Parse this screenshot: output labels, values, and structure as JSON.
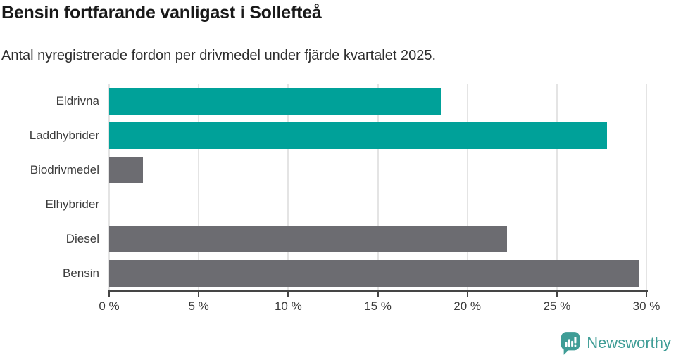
{
  "title": "Bensin fortfarande vanligast i Sollefteå",
  "subtitle": "Antal nyregistrerade fordon per drivmedel under fjärde kvartalet 2025.",
  "chart_data": {
    "type": "bar",
    "orientation": "horizontal",
    "categories": [
      "Eldrivna",
      "Laddhybrider",
      "Biodrivmedel",
      "Elhybrider",
      "Diesel",
      "Bensin"
    ],
    "values": [
      18.5,
      27.8,
      1.9,
      0,
      22.2,
      29.6
    ],
    "unit": "%",
    "xlim": [
      0,
      30
    ],
    "x_tick_values": [
      0,
      5,
      10,
      15,
      20,
      25,
      30
    ],
    "x_tick_labels": [
      "0 %",
      "5 %",
      "10 %",
      "15 %",
      "20 %",
      "25 %",
      "30 %"
    ],
    "bar_colors": [
      "#00a199",
      "#00a199",
      "#6c6c71",
      "#6c6c71",
      "#6c6c71",
      "#6c6c71"
    ],
    "grid": true,
    "legend": "none",
    "title": "Bensin fortfarande vanligast i Sollefteå",
    "xlabel": "",
    "ylabel": ""
  },
  "colors": {
    "teal": "#00a199",
    "gray": "#6c6c71",
    "gridline": "#e4e4e4",
    "axis": "#454545",
    "title_text": "#191919",
    "label_text": "#3c3c3c",
    "brand_teal": "#3f9d96"
  },
  "branding": {
    "logo_label": "Newsworthy",
    "logo_icon": "bar-chart-speech-bubble-icon"
  }
}
